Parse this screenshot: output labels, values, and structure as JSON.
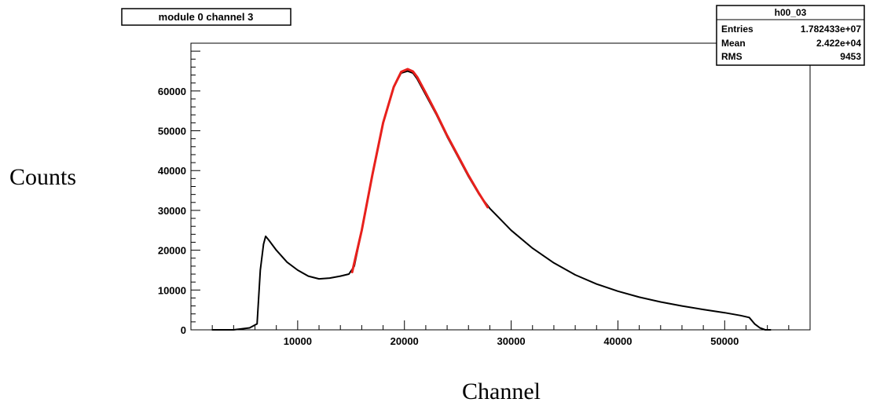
{
  "chart_data": {
    "type": "line",
    "title": "module 0 channel 3",
    "xlabel": "Channel",
    "ylabel": "Counts",
    "xlim": [
      0,
      58000
    ],
    "ylim": [
      0,
      72000
    ],
    "x_ticks": [
      10000,
      20000,
      30000,
      40000,
      50000
    ],
    "x_tick_labels": [
      "10000",
      "20000",
      "30000",
      "40000",
      "50000"
    ],
    "y_ticks": [
      0,
      10000,
      20000,
      30000,
      40000,
      50000,
      60000
    ],
    "y_tick_labels": [
      "0",
      "10000",
      "20000",
      "30000",
      "40000",
      "50000",
      "60000"
    ],
    "stats_box": {
      "name": "h00_03",
      "rows": [
        {
          "label": "Entries",
          "value": "1.782433e+07"
        },
        {
          "label": "Mean",
          "value": "2.422e+04"
        },
        {
          "label": "RMS",
          "value": "9453"
        }
      ]
    },
    "series": [
      {
        "color": "#000000",
        "x": [
          2000,
          4000,
          5500,
          6200,
          6500,
          6800,
          7000,
          7300,
          8000,
          9000,
          10000,
          11000,
          12000,
          13000,
          14000,
          14800,
          15300,
          16000,
          17000,
          18000,
          19000,
          19700,
          20300,
          20800,
          21200,
          22000,
          23000,
          24000,
          25000,
          26000,
          27000,
          28000,
          30000,
          32000,
          34000,
          36000,
          38000,
          40000,
          42000,
          44000,
          46000,
          48000,
          50000,
          51500,
          52300,
          52800,
          53300,
          53800,
          54300
        ],
        "y": [
          0,
          0,
          500,
          1500,
          15000,
          21500,
          23500,
          22500,
          20000,
          17000,
          15000,
          13500,
          12800,
          13000,
          13500,
          14000,
          16000,
          25000,
          39000,
          52000,
          61000,
          64500,
          65000,
          64500,
          63000,
          59000,
          54000,
          48500,
          43500,
          38500,
          34000,
          30500,
          25000,
          20500,
          16800,
          13800,
          11500,
          9700,
          8200,
          7000,
          6000,
          5100,
          4300,
          3600,
          3100,
          1500,
          500,
          0,
          0
        ]
      },
      {
        "color": "#e8201c",
        "x": [
          15100,
          16000,
          17000,
          18000,
          19000,
          19700,
          20300,
          20800,
          21200,
          22000,
          23000,
          24000,
          25000,
          26000,
          27000,
          27800
        ],
        "y": [
          14500,
          25000,
          39000,
          52000,
          61000,
          64800,
          65500,
          64900,
          63500,
          59500,
          54300,
          48800,
          43800,
          38800,
          34200,
          30800
        ]
      }
    ]
  }
}
